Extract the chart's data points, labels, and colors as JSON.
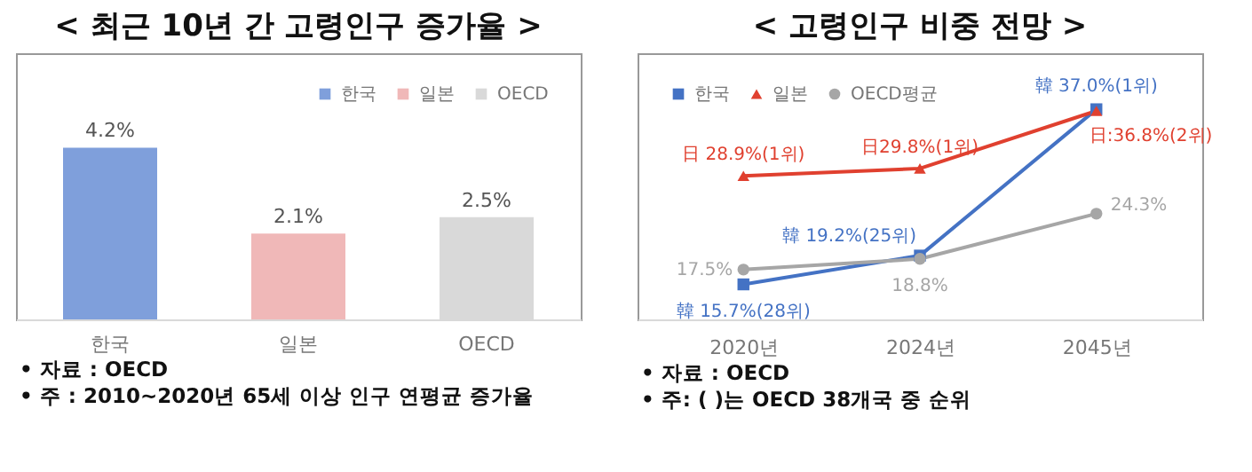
{
  "chart_data": [
    {
      "type": "bar",
      "title": "< 최근 10년 간 고령인구 증가율 >",
      "categories": [
        "한국",
        "일본",
        "OECD"
      ],
      "legend": "top right",
      "series": [
        {
          "name": "한국",
          "color": "#7f9fdb",
          "values": [
            4.2,
            null,
            null
          ],
          "value_labels": [
            "4.2%",
            null,
            null
          ]
        },
        {
          "name": "일본",
          "color": "#f0b8b8",
          "values": [
            null,
            2.1,
            null
          ],
          "value_labels": [
            null,
            "2.1%",
            null
          ]
        },
        {
          "name": "OECD",
          "color": "#d9d9d9",
          "values": [
            null,
            null,
            2.5
          ],
          "value_labels": [
            null,
            null,
            "2.5%"
          ]
        }
      ],
      "annotations": [
        "• 자료 : OECD",
        "• 주 : 2010~2020년 65세 이상 인구 연평균 증가율"
      ]
    },
    {
      "type": "line",
      "title": "< 고령인구 비중 전망 >",
      "categories": [
        "2020년",
        "2024년",
        "2045년"
      ],
      "legend": "top left",
      "series": [
        {
          "name": "한국",
          "color": "#4472c4",
          "marker": "square",
          "values": [
            15.7,
            19.2,
            37.0
          ],
          "value_labels": [
            "韓 15.7%(28위)",
            "韓 19.2%(25위)",
            "韓 37.0%(1위)"
          ]
        },
        {
          "name": "일본",
          "color": "#e0402f",
          "marker": "triangle",
          "values": [
            28.9,
            29.8,
            36.8
          ],
          "value_labels": [
            "日 28.9%(1위)",
            "日29.8%(1위)",
            "日:36.8%(2위)"
          ]
        },
        {
          "name": "OECD평균",
          "color": "#a6a6a6",
          "marker": "circle",
          "values": [
            17.5,
            18.8,
            24.3
          ],
          "value_labels": [
            "17.5%",
            "18.8%",
            "24.3%"
          ]
        }
      ],
      "annotations": [
        "• 자료 : OECD",
        "• 주: (   )는 OECD 38개국 중 순위"
      ]
    }
  ]
}
